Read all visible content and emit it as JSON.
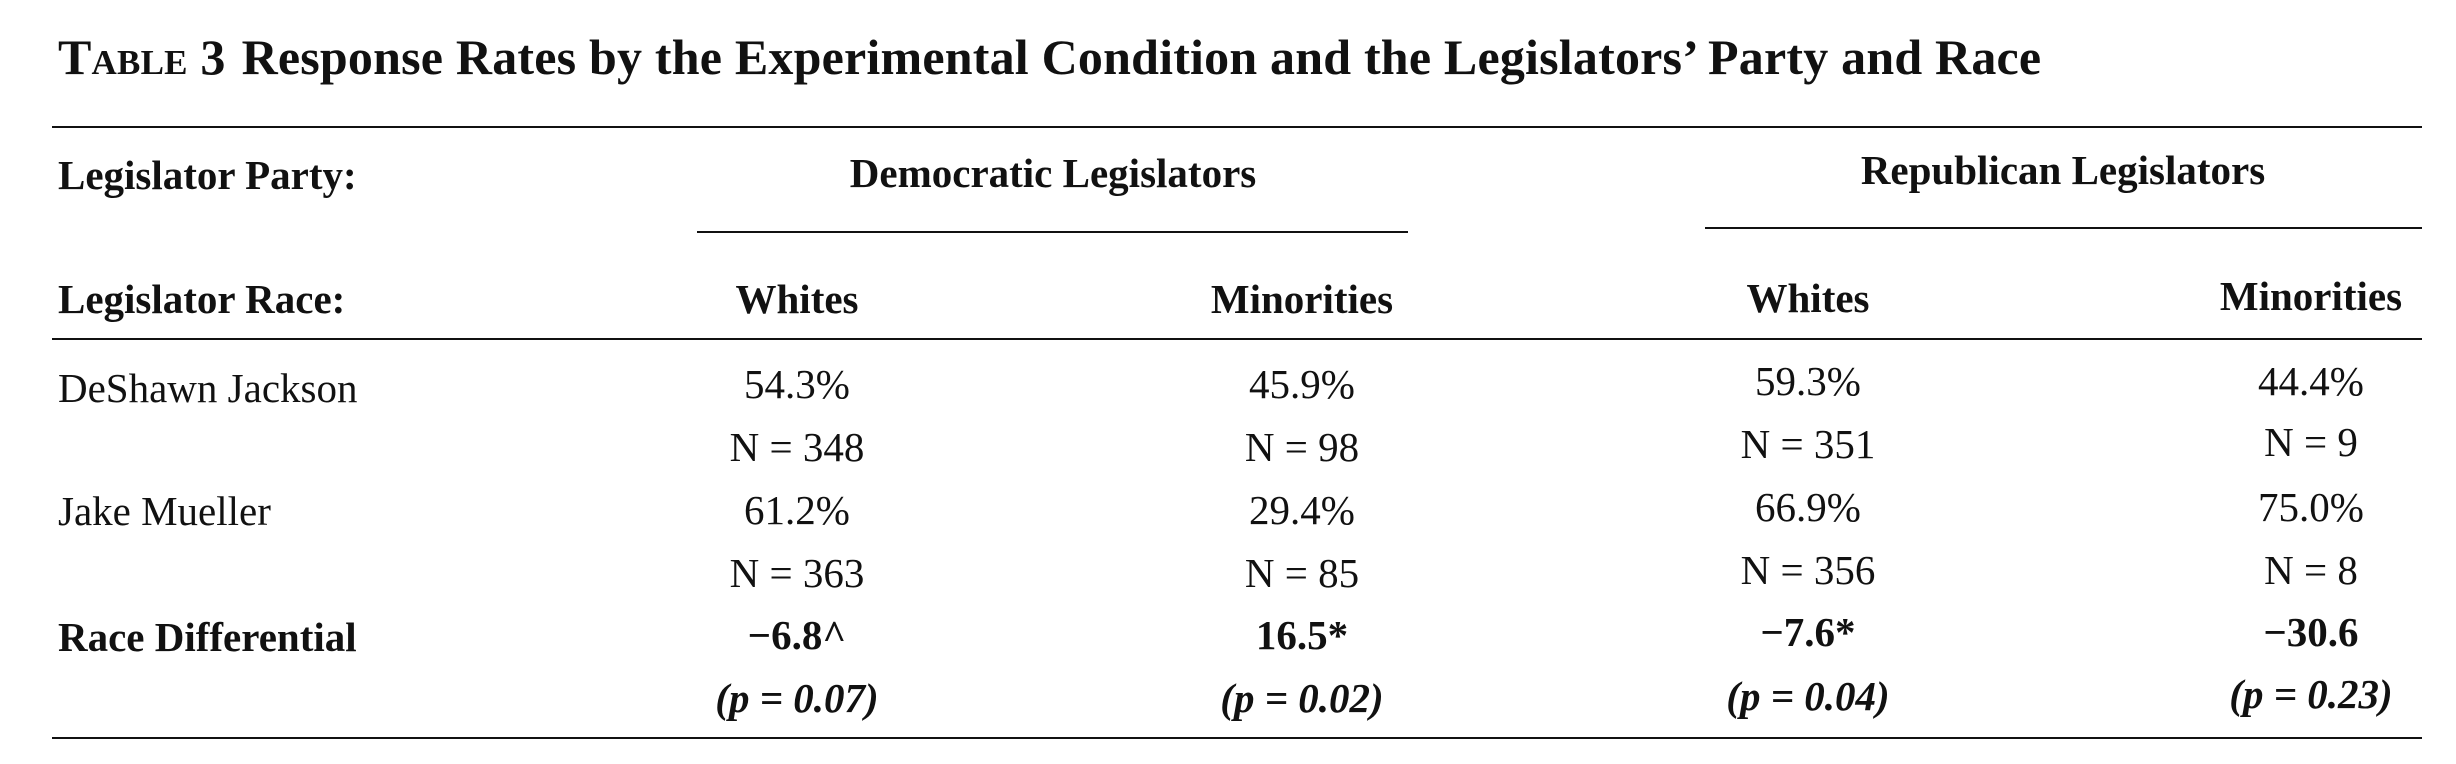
{
  "table": {
    "label": "Table 3",
    "title": "Response Rates by the Experimental Condition and the Legislators’ Party and Race",
    "row_headers": {
      "party": "Legislator Party:",
      "race": "Legislator Race:"
    },
    "parties": [
      "Democratic Legislators",
      "Republican Legislators"
    ],
    "races": [
      "Whites",
      "Minorities",
      "Whites",
      "Minorities"
    ],
    "rows": [
      {
        "label": "DeShawn Jackson",
        "rates": [
          "54.3%",
          "45.9%",
          "59.3%",
          "44.4%"
        ],
        "ns": [
          "N = 348",
          "N = 98",
          "N = 351",
          "N = 9"
        ]
      },
      {
        "label": "Jake Mueller",
        "rates": [
          "61.2%",
          "29.4%",
          "66.9%",
          "75.0%"
        ],
        "ns": [
          "N = 363",
          "N = 85",
          "N = 356",
          "N = 8"
        ]
      }
    ],
    "differential": {
      "label": "Race Differential",
      "values": [
        "−6.8^",
        "16.5*",
        "−7.6*",
        "−30.6"
      ],
      "pvalues": [
        "(p = 0.07)",
        "(p = 0.02)",
        "(p = 0.04)",
        "(p = 0.23)"
      ]
    }
  }
}
